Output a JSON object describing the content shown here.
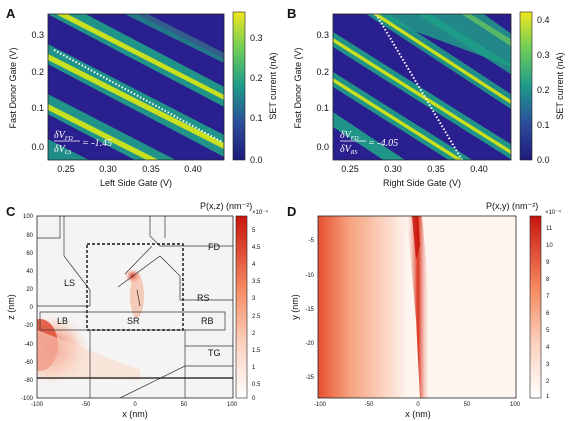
{
  "panels": {
    "A": {
      "letter": "A",
      "xlabel": "Left Side Gate (V)",
      "ylabel": "Fast Donor Gate (V)",
      "cbar_label": "SET current (nA)",
      "xticks": [
        "0.25",
        "0.30",
        "0.35",
        "0.40"
      ],
      "yticks": [
        "0.3",
        "0.2",
        "0.1",
        "0.0"
      ],
      "cticks": [
        "0.3",
        "0.2",
        "0.1",
        "0.0"
      ],
      "ratio_num": "δV",
      "ratio_num_sub": "FD",
      "ratio_den": "δV",
      "ratio_den_sub": "LS",
      "ratio_value": "= -1.45"
    },
    "B": {
      "letter": "B",
      "xlabel": "Right Side Gate (V)",
      "ylabel": "Fast Donor Gate (V)",
      "cbar_label": "SET current (nA)",
      "xticks": [
        "0.25",
        "0.30",
        "0.35",
        "0.40"
      ],
      "yticks": [
        "0.3",
        "0.2",
        "0.1",
        "0.0"
      ],
      "cticks": [
        "0.4",
        "0.3",
        "0.2",
        "0.1",
        "0.0"
      ],
      "ratio_num": "δV",
      "ratio_num_sub": "FD",
      "ratio_den": "δV",
      "ratio_den_sub": "RS",
      "ratio_value": "= -4.05"
    },
    "C": {
      "letter": "C",
      "xlabel": "x (nm)",
      "ylabel": "z (nm)",
      "cbar_label": "P(x,z) (nm⁻²)",
      "cbar_exp": "×10⁻⁴",
      "xticks": [
        "-100",
        "-50",
        "0",
        "50",
        "100"
      ],
      "yticks": [
        "100",
        "80",
        "60",
        "40",
        "20",
        "0",
        "-20",
        "-40",
        "-60",
        "-80",
        "-100"
      ],
      "cticks": [
        "5",
        "4.5",
        "4",
        "3.5",
        "3",
        "2.5",
        "2",
        "1.5",
        "1",
        "0.5",
        "0"
      ],
      "regions": [
        "FD",
        "LS",
        "RS",
        "LB",
        "SR",
        "RB",
        "TG"
      ]
    },
    "D": {
      "letter": "D",
      "xlabel": "x (nm)",
      "ylabel": "y (nm)",
      "cbar_label": "P(x,y) (nm⁻²)",
      "cbar_exp": "×10⁻⁴",
      "xticks": [
        "-100",
        "-50",
        "0",
        "50",
        "100"
      ],
      "yticks": [
        "-5",
        "-10",
        "-15",
        "-20",
        "-25"
      ],
      "cticks": [
        "11",
        "10",
        "9",
        "8",
        "7",
        "6",
        "5",
        "4",
        "3",
        "2",
        "1"
      ]
    }
  },
  "colors": {
    "viridis_dark": "#2a1f8e",
    "viridis_mid": "#1fa187",
    "viridis_bright": "#d8e219",
    "reds_peak": "#cc1a10",
    "reds_bg": "#fff5f0",
    "gate_bg": "#f4f4f4"
  }
}
